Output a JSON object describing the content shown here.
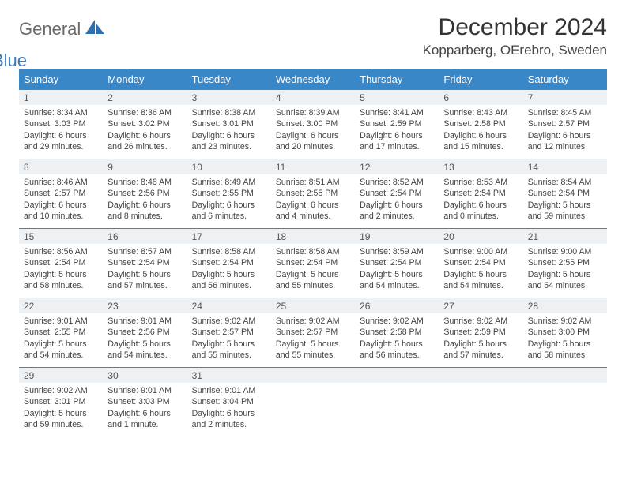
{
  "logo": {
    "text1": "General",
    "text2": "Blue"
  },
  "title": "December 2024",
  "location": "Kopparberg, OErebro, Sweden",
  "colors": {
    "header_bg": "#3a87c7",
    "header_text": "#ffffff",
    "daynum_bg": "#eef1f3",
    "rule": "#3a87c7",
    "body_text": "#444444",
    "logo_gray": "#6a6a6a",
    "logo_blue": "#3a7bbf"
  },
  "weekdays": [
    "Sunday",
    "Monday",
    "Tuesday",
    "Wednesday",
    "Thursday",
    "Friday",
    "Saturday"
  ],
  "days": [
    {
      "n": "1",
      "sunrise": "Sunrise: 8:34 AM",
      "sunset": "Sunset: 3:03 PM",
      "day1": "Daylight: 6 hours",
      "day2": "and 29 minutes."
    },
    {
      "n": "2",
      "sunrise": "Sunrise: 8:36 AM",
      "sunset": "Sunset: 3:02 PM",
      "day1": "Daylight: 6 hours",
      "day2": "and 26 minutes."
    },
    {
      "n": "3",
      "sunrise": "Sunrise: 8:38 AM",
      "sunset": "Sunset: 3:01 PM",
      "day1": "Daylight: 6 hours",
      "day2": "and 23 minutes."
    },
    {
      "n": "4",
      "sunrise": "Sunrise: 8:39 AM",
      "sunset": "Sunset: 3:00 PM",
      "day1": "Daylight: 6 hours",
      "day2": "and 20 minutes."
    },
    {
      "n": "5",
      "sunrise": "Sunrise: 8:41 AM",
      "sunset": "Sunset: 2:59 PM",
      "day1": "Daylight: 6 hours",
      "day2": "and 17 minutes."
    },
    {
      "n": "6",
      "sunrise": "Sunrise: 8:43 AM",
      "sunset": "Sunset: 2:58 PM",
      "day1": "Daylight: 6 hours",
      "day2": "and 15 minutes."
    },
    {
      "n": "7",
      "sunrise": "Sunrise: 8:45 AM",
      "sunset": "Sunset: 2:57 PM",
      "day1": "Daylight: 6 hours",
      "day2": "and 12 minutes."
    },
    {
      "n": "8",
      "sunrise": "Sunrise: 8:46 AM",
      "sunset": "Sunset: 2:57 PM",
      "day1": "Daylight: 6 hours",
      "day2": "and 10 minutes."
    },
    {
      "n": "9",
      "sunrise": "Sunrise: 8:48 AM",
      "sunset": "Sunset: 2:56 PM",
      "day1": "Daylight: 6 hours",
      "day2": "and 8 minutes."
    },
    {
      "n": "10",
      "sunrise": "Sunrise: 8:49 AM",
      "sunset": "Sunset: 2:55 PM",
      "day1": "Daylight: 6 hours",
      "day2": "and 6 minutes."
    },
    {
      "n": "11",
      "sunrise": "Sunrise: 8:51 AM",
      "sunset": "Sunset: 2:55 PM",
      "day1": "Daylight: 6 hours",
      "day2": "and 4 minutes."
    },
    {
      "n": "12",
      "sunrise": "Sunrise: 8:52 AM",
      "sunset": "Sunset: 2:54 PM",
      "day1": "Daylight: 6 hours",
      "day2": "and 2 minutes."
    },
    {
      "n": "13",
      "sunrise": "Sunrise: 8:53 AM",
      "sunset": "Sunset: 2:54 PM",
      "day1": "Daylight: 6 hours",
      "day2": "and 0 minutes."
    },
    {
      "n": "14",
      "sunrise": "Sunrise: 8:54 AM",
      "sunset": "Sunset: 2:54 PM",
      "day1": "Daylight: 5 hours",
      "day2": "and 59 minutes."
    },
    {
      "n": "15",
      "sunrise": "Sunrise: 8:56 AM",
      "sunset": "Sunset: 2:54 PM",
      "day1": "Daylight: 5 hours",
      "day2": "and 58 minutes."
    },
    {
      "n": "16",
      "sunrise": "Sunrise: 8:57 AM",
      "sunset": "Sunset: 2:54 PM",
      "day1": "Daylight: 5 hours",
      "day2": "and 57 minutes."
    },
    {
      "n": "17",
      "sunrise": "Sunrise: 8:58 AM",
      "sunset": "Sunset: 2:54 PM",
      "day1": "Daylight: 5 hours",
      "day2": "and 56 minutes."
    },
    {
      "n": "18",
      "sunrise": "Sunrise: 8:58 AM",
      "sunset": "Sunset: 2:54 PM",
      "day1": "Daylight: 5 hours",
      "day2": "and 55 minutes."
    },
    {
      "n": "19",
      "sunrise": "Sunrise: 8:59 AM",
      "sunset": "Sunset: 2:54 PM",
      "day1": "Daylight: 5 hours",
      "day2": "and 54 minutes."
    },
    {
      "n": "20",
      "sunrise": "Sunrise: 9:00 AM",
      "sunset": "Sunset: 2:54 PM",
      "day1": "Daylight: 5 hours",
      "day2": "and 54 minutes."
    },
    {
      "n": "21",
      "sunrise": "Sunrise: 9:00 AM",
      "sunset": "Sunset: 2:55 PM",
      "day1": "Daylight: 5 hours",
      "day2": "and 54 minutes."
    },
    {
      "n": "22",
      "sunrise": "Sunrise: 9:01 AM",
      "sunset": "Sunset: 2:55 PM",
      "day1": "Daylight: 5 hours",
      "day2": "and 54 minutes."
    },
    {
      "n": "23",
      "sunrise": "Sunrise: 9:01 AM",
      "sunset": "Sunset: 2:56 PM",
      "day1": "Daylight: 5 hours",
      "day2": "and 54 minutes."
    },
    {
      "n": "24",
      "sunrise": "Sunrise: 9:02 AM",
      "sunset": "Sunset: 2:57 PM",
      "day1": "Daylight: 5 hours",
      "day2": "and 55 minutes."
    },
    {
      "n": "25",
      "sunrise": "Sunrise: 9:02 AM",
      "sunset": "Sunset: 2:57 PM",
      "day1": "Daylight: 5 hours",
      "day2": "and 55 minutes."
    },
    {
      "n": "26",
      "sunrise": "Sunrise: 9:02 AM",
      "sunset": "Sunset: 2:58 PM",
      "day1": "Daylight: 5 hours",
      "day2": "and 56 minutes."
    },
    {
      "n": "27",
      "sunrise": "Sunrise: 9:02 AM",
      "sunset": "Sunset: 2:59 PM",
      "day1": "Daylight: 5 hours",
      "day2": "and 57 minutes."
    },
    {
      "n": "28",
      "sunrise": "Sunrise: 9:02 AM",
      "sunset": "Sunset: 3:00 PM",
      "day1": "Daylight: 5 hours",
      "day2": "and 58 minutes."
    },
    {
      "n": "29",
      "sunrise": "Sunrise: 9:02 AM",
      "sunset": "Sunset: 3:01 PM",
      "day1": "Daylight: 5 hours",
      "day2": "and 59 minutes."
    },
    {
      "n": "30",
      "sunrise": "Sunrise: 9:01 AM",
      "sunset": "Sunset: 3:03 PM",
      "day1": "Daylight: 6 hours",
      "day2": "and 1 minute."
    },
    {
      "n": "31",
      "sunrise": "Sunrise: 9:01 AM",
      "sunset": "Sunset: 3:04 PM",
      "day1": "Daylight: 6 hours",
      "day2": "and 2 minutes."
    }
  ]
}
